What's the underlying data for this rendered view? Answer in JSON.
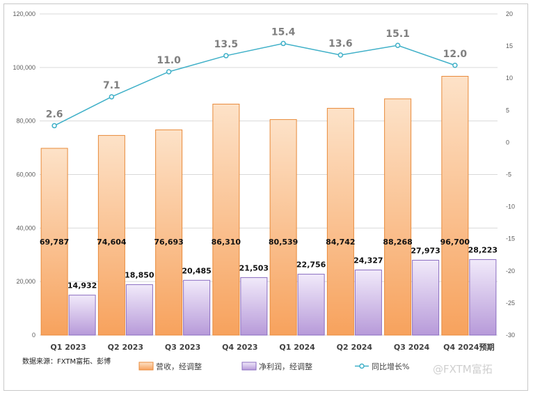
{
  "chart_data": {
    "type": "bar",
    "categories": [
      "Q1 2023",
      "Q2 2023",
      "Q3 2023",
      "Q4 2023",
      "Q1 2024",
      "Q2 2024",
      "Q3 2024",
      "Q4 2024预期"
    ],
    "series": [
      {
        "name": "营收，经调整",
        "axis": "left",
        "values": [
          69787,
          74604,
          76693,
          86310,
          80539,
          84742,
          88268,
          96700
        ],
        "labels": [
          "69,787",
          "74,604",
          "76,693",
          "86,310",
          "80,539",
          "84,742",
          "88,268",
          "96,700"
        ],
        "color": "#f7a25d"
      },
      {
        "name": "净利润，经调整",
        "axis": "left",
        "values": [
          14932,
          18850,
          20485,
          21503,
          22756,
          24327,
          27973,
          28223
        ],
        "labels": [
          "14,932",
          "18,850",
          "20,485",
          "21,503",
          "22,756",
          "24,327",
          "27,973",
          "28,223"
        ],
        "color": "#b79ad9"
      },
      {
        "name": "同比增长%",
        "type": "line",
        "axis": "right",
        "values": [
          2.6,
          7.1,
          11.0,
          13.5,
          15.4,
          13.6,
          15.1,
          12.0
        ],
        "labels": [
          "2.6",
          "7.1",
          "11.0",
          "13.5",
          "15.4",
          "13.6",
          "15.1",
          "12.0"
        ],
        "color": "#3fb0c8"
      }
    ],
    "ylim": [
      0,
      120000
    ],
    "yticks": [
      "0",
      "20,000",
      "40,000",
      "60,000",
      "80,000",
      "100,000",
      "120,000"
    ],
    "y2lim": [
      -30,
      20
    ],
    "y2ticks": [
      "-30",
      "-25",
      "-20",
      "-15",
      "-10",
      "-5",
      "0",
      "5",
      "10",
      "15",
      "20"
    ],
    "grid": true,
    "legend": "bottom"
  },
  "source_note": "数据来源：FXTM富拓、彭博",
  "watermark": "@FXTM富拓"
}
